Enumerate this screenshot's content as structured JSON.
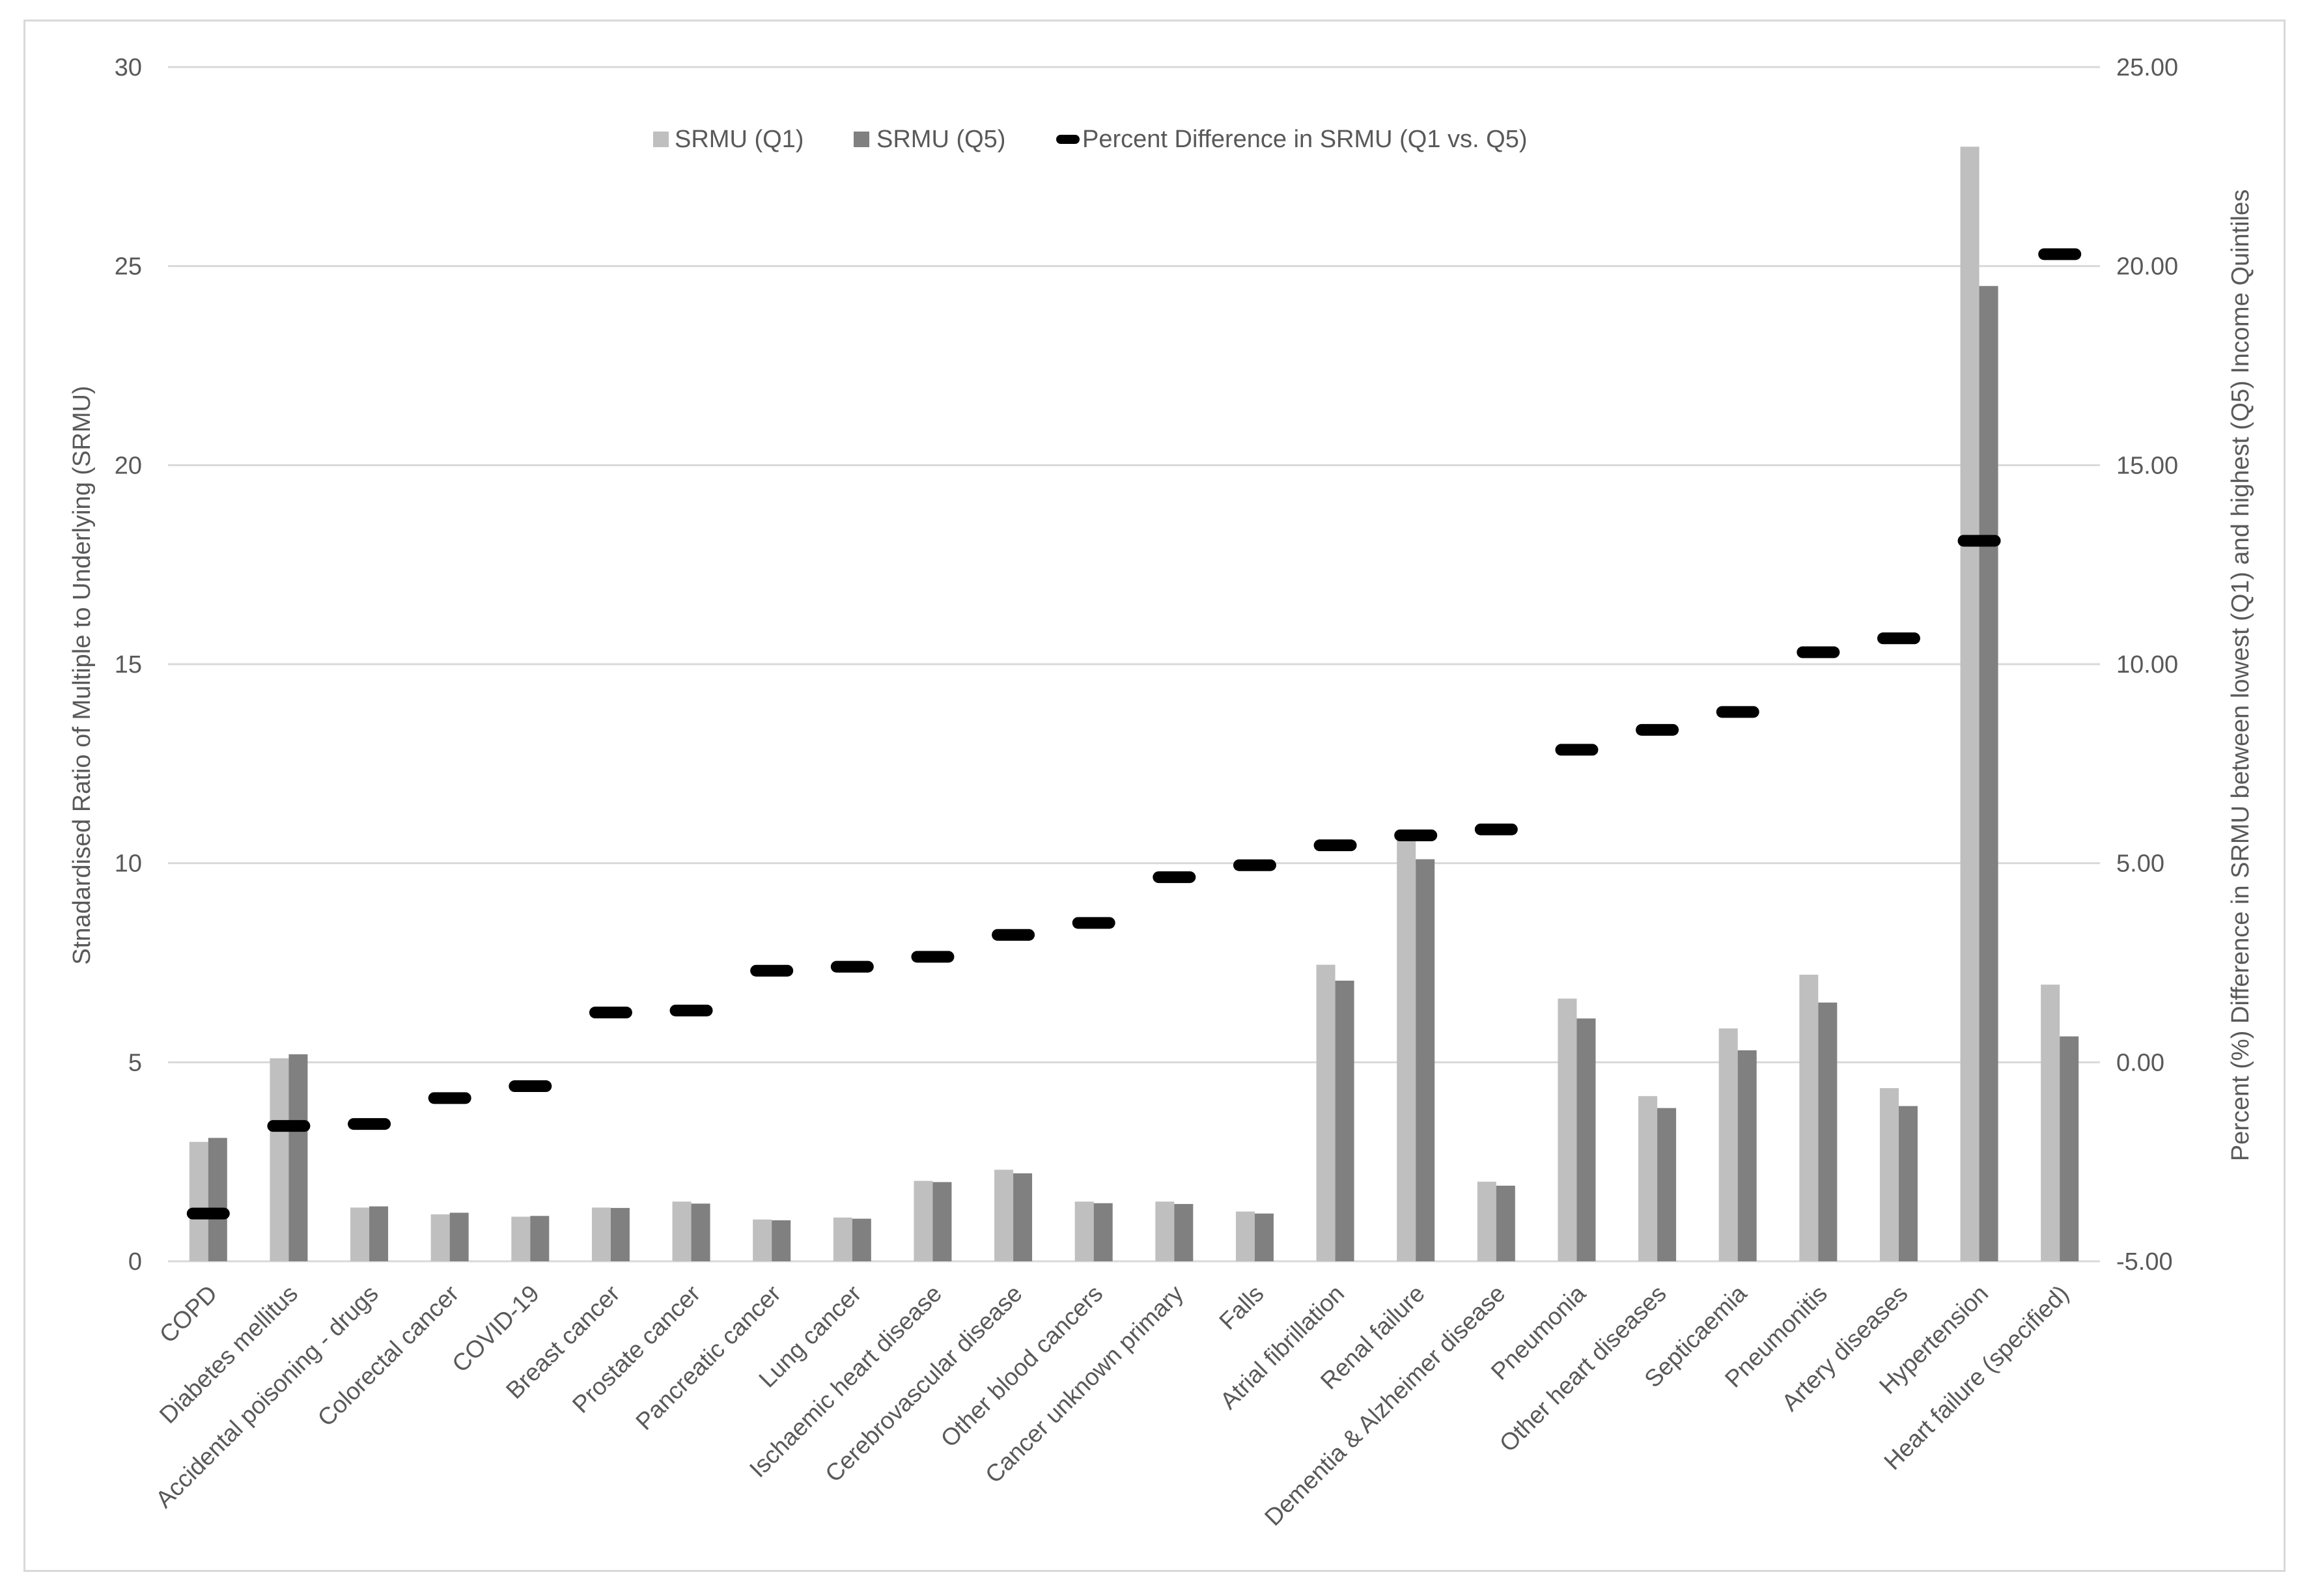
{
  "chart_data": {
    "type": "bar",
    "title": "",
    "ylabel": "Stnadardised Ratio of Multiple to Underlying (SRMU)",
    "y2label": "Percent (%) Difference in SRMU between lowest (Q1) and highest (Q5) Income Quintiles",
    "ylim": [
      0,
      30
    ],
    "y2lim": [
      -5,
      25
    ],
    "yticks": [
      "0",
      "5",
      "10",
      "15",
      "20",
      "25",
      "30"
    ],
    "y2ticks": [
      "-5.00",
      "0.00",
      "5.00",
      "10.00",
      "15.00",
      "20.00",
      "25.00"
    ],
    "grid": true,
    "legend_position": "top",
    "colors": {
      "q1": "#bfbfbf",
      "q5": "#808080",
      "pct": "#000000",
      "grid": "#d9d9d9",
      "text": "#595959"
    },
    "categories": [
      "COPD",
      "Diabetes mellitus",
      "Accidental poisoning - drugs",
      "Colorectal cancer",
      "COVID-19",
      "Breast cancer",
      "Prostate cancer",
      "Pancreatic cancer",
      "Lung cancer",
      "Ischaemic heart disease",
      "Cerebrovascular disease",
      "Other blood cancers",
      "Cancer unknown primary",
      "Falls",
      "Atrial fibrillation",
      "Renal failure",
      "Dementia & Alzheimer disease",
      "Pneumonia",
      "Other heart diseases",
      "Septicaemia",
      "Pneumonitis",
      "Artery diseases",
      "Hypertension",
      "Heart failure (specified)"
    ],
    "series": [
      {
        "name": "SRMU (Q1)",
        "type": "bar",
        "axis": "left",
        "values": [
          3.0,
          5.1,
          1.35,
          1.18,
          1.12,
          1.35,
          1.5,
          1.05,
          1.1,
          2.02,
          2.3,
          1.5,
          1.5,
          1.25,
          7.45,
          10.8,
          2.0,
          6.6,
          4.15,
          5.85,
          7.2,
          4.35,
          28.0,
          6.95
        ]
      },
      {
        "name": "SRMU (Q5)",
        "type": "bar",
        "axis": "left",
        "values": [
          3.1,
          5.2,
          1.38,
          1.22,
          1.14,
          1.34,
          1.45,
          1.03,
          1.07,
          1.99,
          2.21,
          1.46,
          1.44,
          1.2,
          7.05,
          10.1,
          1.9,
          6.1,
          3.85,
          5.3,
          6.5,
          3.9,
          24.5,
          5.65
        ]
      },
      {
        "name": "Percent Difference in SRMU (Q1 vs. Q5)",
        "type": "marker",
        "axis": "right",
        "values": [
          -3.8,
          -1.6,
          -1.55,
          -0.9,
          -0.6,
          1.25,
          1.3,
          2.3,
          2.4,
          2.65,
          3.2,
          3.5,
          4.65,
          4.95,
          5.45,
          5.7,
          5.85,
          7.85,
          8.35,
          8.8,
          10.3,
          10.65,
          13.1,
          20.3
        ]
      }
    ]
  }
}
